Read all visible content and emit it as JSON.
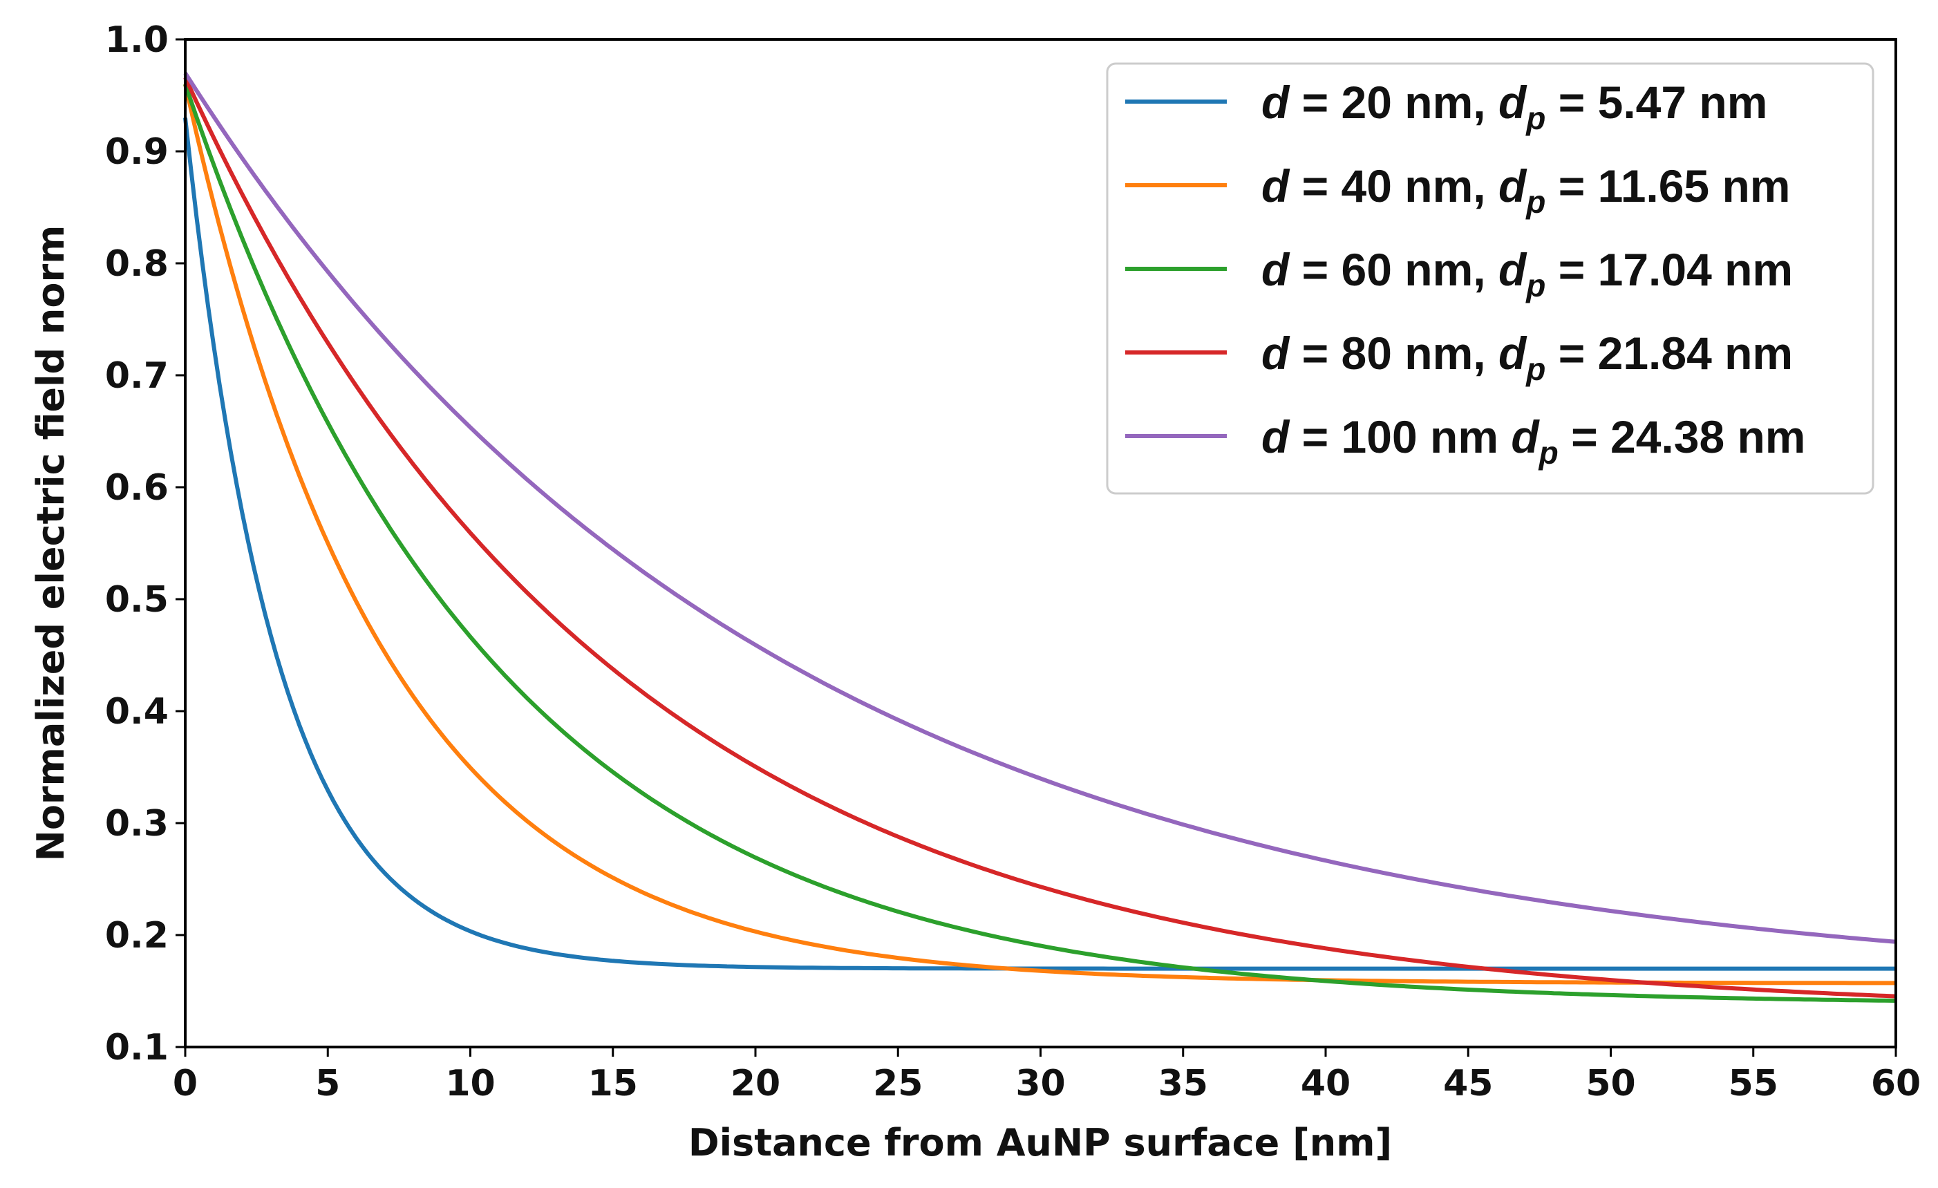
{
  "chart_data": {
    "type": "line",
    "title": "",
    "xlabel": "Distance from AuNP surface [nm]",
    "ylabel": "Normalized electric field norm",
    "xlim": [
      0,
      60
    ],
    "ylim": [
      0.1,
      1.0
    ],
    "xticks": [
      0,
      5,
      10,
      15,
      20,
      25,
      30,
      35,
      40,
      45,
      50,
      55,
      60
    ],
    "yticks": [
      0.1,
      0.2,
      0.3,
      0.4,
      0.5,
      0.6,
      0.7,
      0.8,
      0.9,
      1.0
    ],
    "xtick_labels": [
      "0",
      "5",
      "10",
      "15",
      "20",
      "25",
      "30",
      "35",
      "40",
      "45",
      "50",
      "55",
      "60"
    ],
    "ytick_labels": [
      "0.1",
      "0.2",
      "0.3",
      "0.4",
      "0.5",
      "0.6",
      "0.7",
      "0.8",
      "0.9",
      "1.0"
    ],
    "grid": false,
    "legend_position": "top-right",
    "series": [
      {
        "name": "d = 20 nm, dp = 5.47 nm",
        "legend": {
          "d": "d",
          "d_val": "20 nm,",
          "dp": "d",
          "sub": "p",
          "dp_val": "5.47 nm"
        },
        "color": "#1f77b4",
        "offset": 0.17,
        "amplitude": 0.76,
        "decay": 3.2
      },
      {
        "name": "d = 40 nm, dp = 11.65 nm",
        "legend": {
          "d": "d",
          "d_val": "40 nm,",
          "dp": "d",
          "sub": "p",
          "dp_val": "11.65 nm"
        },
        "color": "#ff7f0e",
        "offset": 0.157,
        "amplitude": 0.803,
        "decay": 7.0
      },
      {
        "name": "d = 60 nm, dp = 17.04 nm",
        "legend": {
          "d": "d",
          "d_val": "60 nm,",
          "dp": "d",
          "sub": "p",
          "dp_val": "17.04 nm"
        },
        "color": "#2ca02c",
        "offset": 0.138,
        "amplitude": 0.822,
        "decay": 10.9
      },
      {
        "name": "d = 80 nm, dp = 21.84 nm",
        "legend": {
          "d": "d",
          "d_val": "80 nm,",
          "dp": "d",
          "sub": "p",
          "dp_val": "21.84 nm"
        },
        "color": "#d62728",
        "offset": 0.13,
        "amplitude": 0.836,
        "decay": 15.0
      },
      {
        "name": "d = 100 nm dp = 24.38 nm",
        "legend": {
          "d": "d",
          "d_val": "100 nm",
          "dp": "d",
          "sub": "p",
          "dp_val": "24.38 nm"
        },
        "color": "#9467bd",
        "offset": 0.15,
        "amplitude": 0.82,
        "decay": 20.5
      }
    ]
  }
}
